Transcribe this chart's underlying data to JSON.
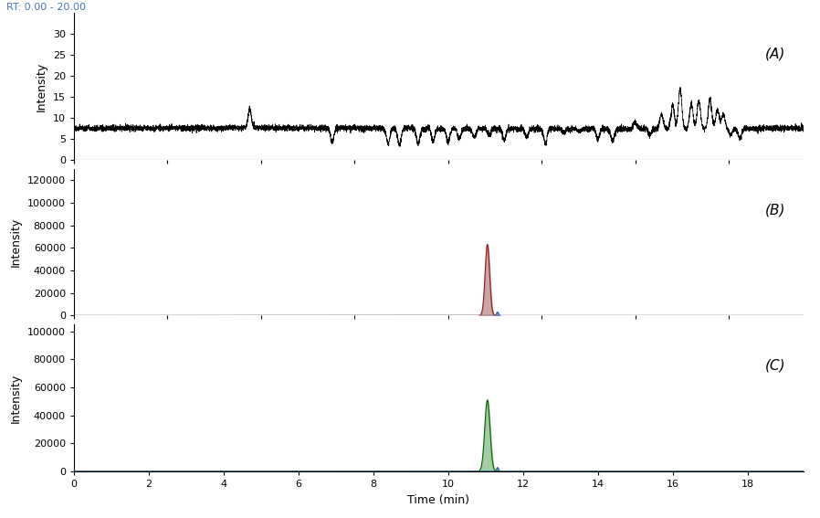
{
  "rt_label": "RT: 0.00 - 20.00",
  "rt_label_color": "#4472C4",
  "xlabel": "Time (min)",
  "ylabel": "Intensity",
  "xmin": 0,
  "xmax": 19.5,
  "panel_labels": [
    "(A)",
    "(B)",
    "(C)"
  ],
  "panel_A": {
    "ylim": [
      0,
      35
    ],
    "yticks": [
      0,
      5,
      10,
      15,
      20,
      25,
      30
    ],
    "baseline": 7.5,
    "noise_std": 0.35,
    "peak_times": [
      4.7,
      6.9,
      8.4,
      8.7,
      9.2,
      9.6,
      10.0,
      10.3,
      10.7,
      11.1,
      11.5,
      12.1,
      12.6,
      13.1,
      13.5,
      14.0,
      14.4,
      15.0,
      15.4,
      15.7,
      16.0,
      16.2,
      16.5,
      16.7,
      17.0,
      17.2,
      17.35,
      17.55,
      17.8
    ],
    "peak_heights": [
      12.0,
      4.2,
      4.0,
      3.5,
      3.8,
      4.5,
      4.2,
      5.0,
      5.5,
      6.0,
      4.8,
      5.5,
      4.0,
      6.5,
      7.0,
      5.0,
      4.5,
      9.0,
      6.0,
      11.0,
      13.0,
      17.0,
      13.5,
      14.0,
      14.5,
      12.0,
      11.0,
      6.0,
      5.0
    ],
    "peak_sigma": 0.045,
    "line_color": "#000000"
  },
  "panel_B": {
    "ylim": [
      0,
      130000
    ],
    "yticks": [
      0,
      20000,
      40000,
      60000,
      80000,
      100000,
      120000
    ],
    "peak_time": 11.05,
    "peak_height": 63000,
    "peak_sigma": 0.06,
    "peak_color": "#8B1A1A",
    "fill_color": "#C09090",
    "small_peak_time": 11.32,
    "small_peak_height": 3200,
    "small_peak_sigma": 0.025,
    "small_peak_color": "#3060A0",
    "baseline_color": "#8B1A1A"
  },
  "panel_C": {
    "ylim": [
      0,
      105000
    ],
    "yticks": [
      0,
      20000,
      40000,
      60000,
      80000,
      100000
    ],
    "peak_time": 11.05,
    "peak_height": 51000,
    "peak_sigma": 0.07,
    "peak_color": "#006400",
    "fill_color": "#90C090",
    "small_peak_time": 11.32,
    "small_peak_height": 2800,
    "small_peak_sigma": 0.025,
    "small_peak_color": "#3060A0",
    "baseline_color": "#006400"
  },
  "background_color": "#FFFFFF",
  "tick_label_fontsize": 8,
  "axis_label_fontsize": 9,
  "panel_label_fontsize": 11
}
